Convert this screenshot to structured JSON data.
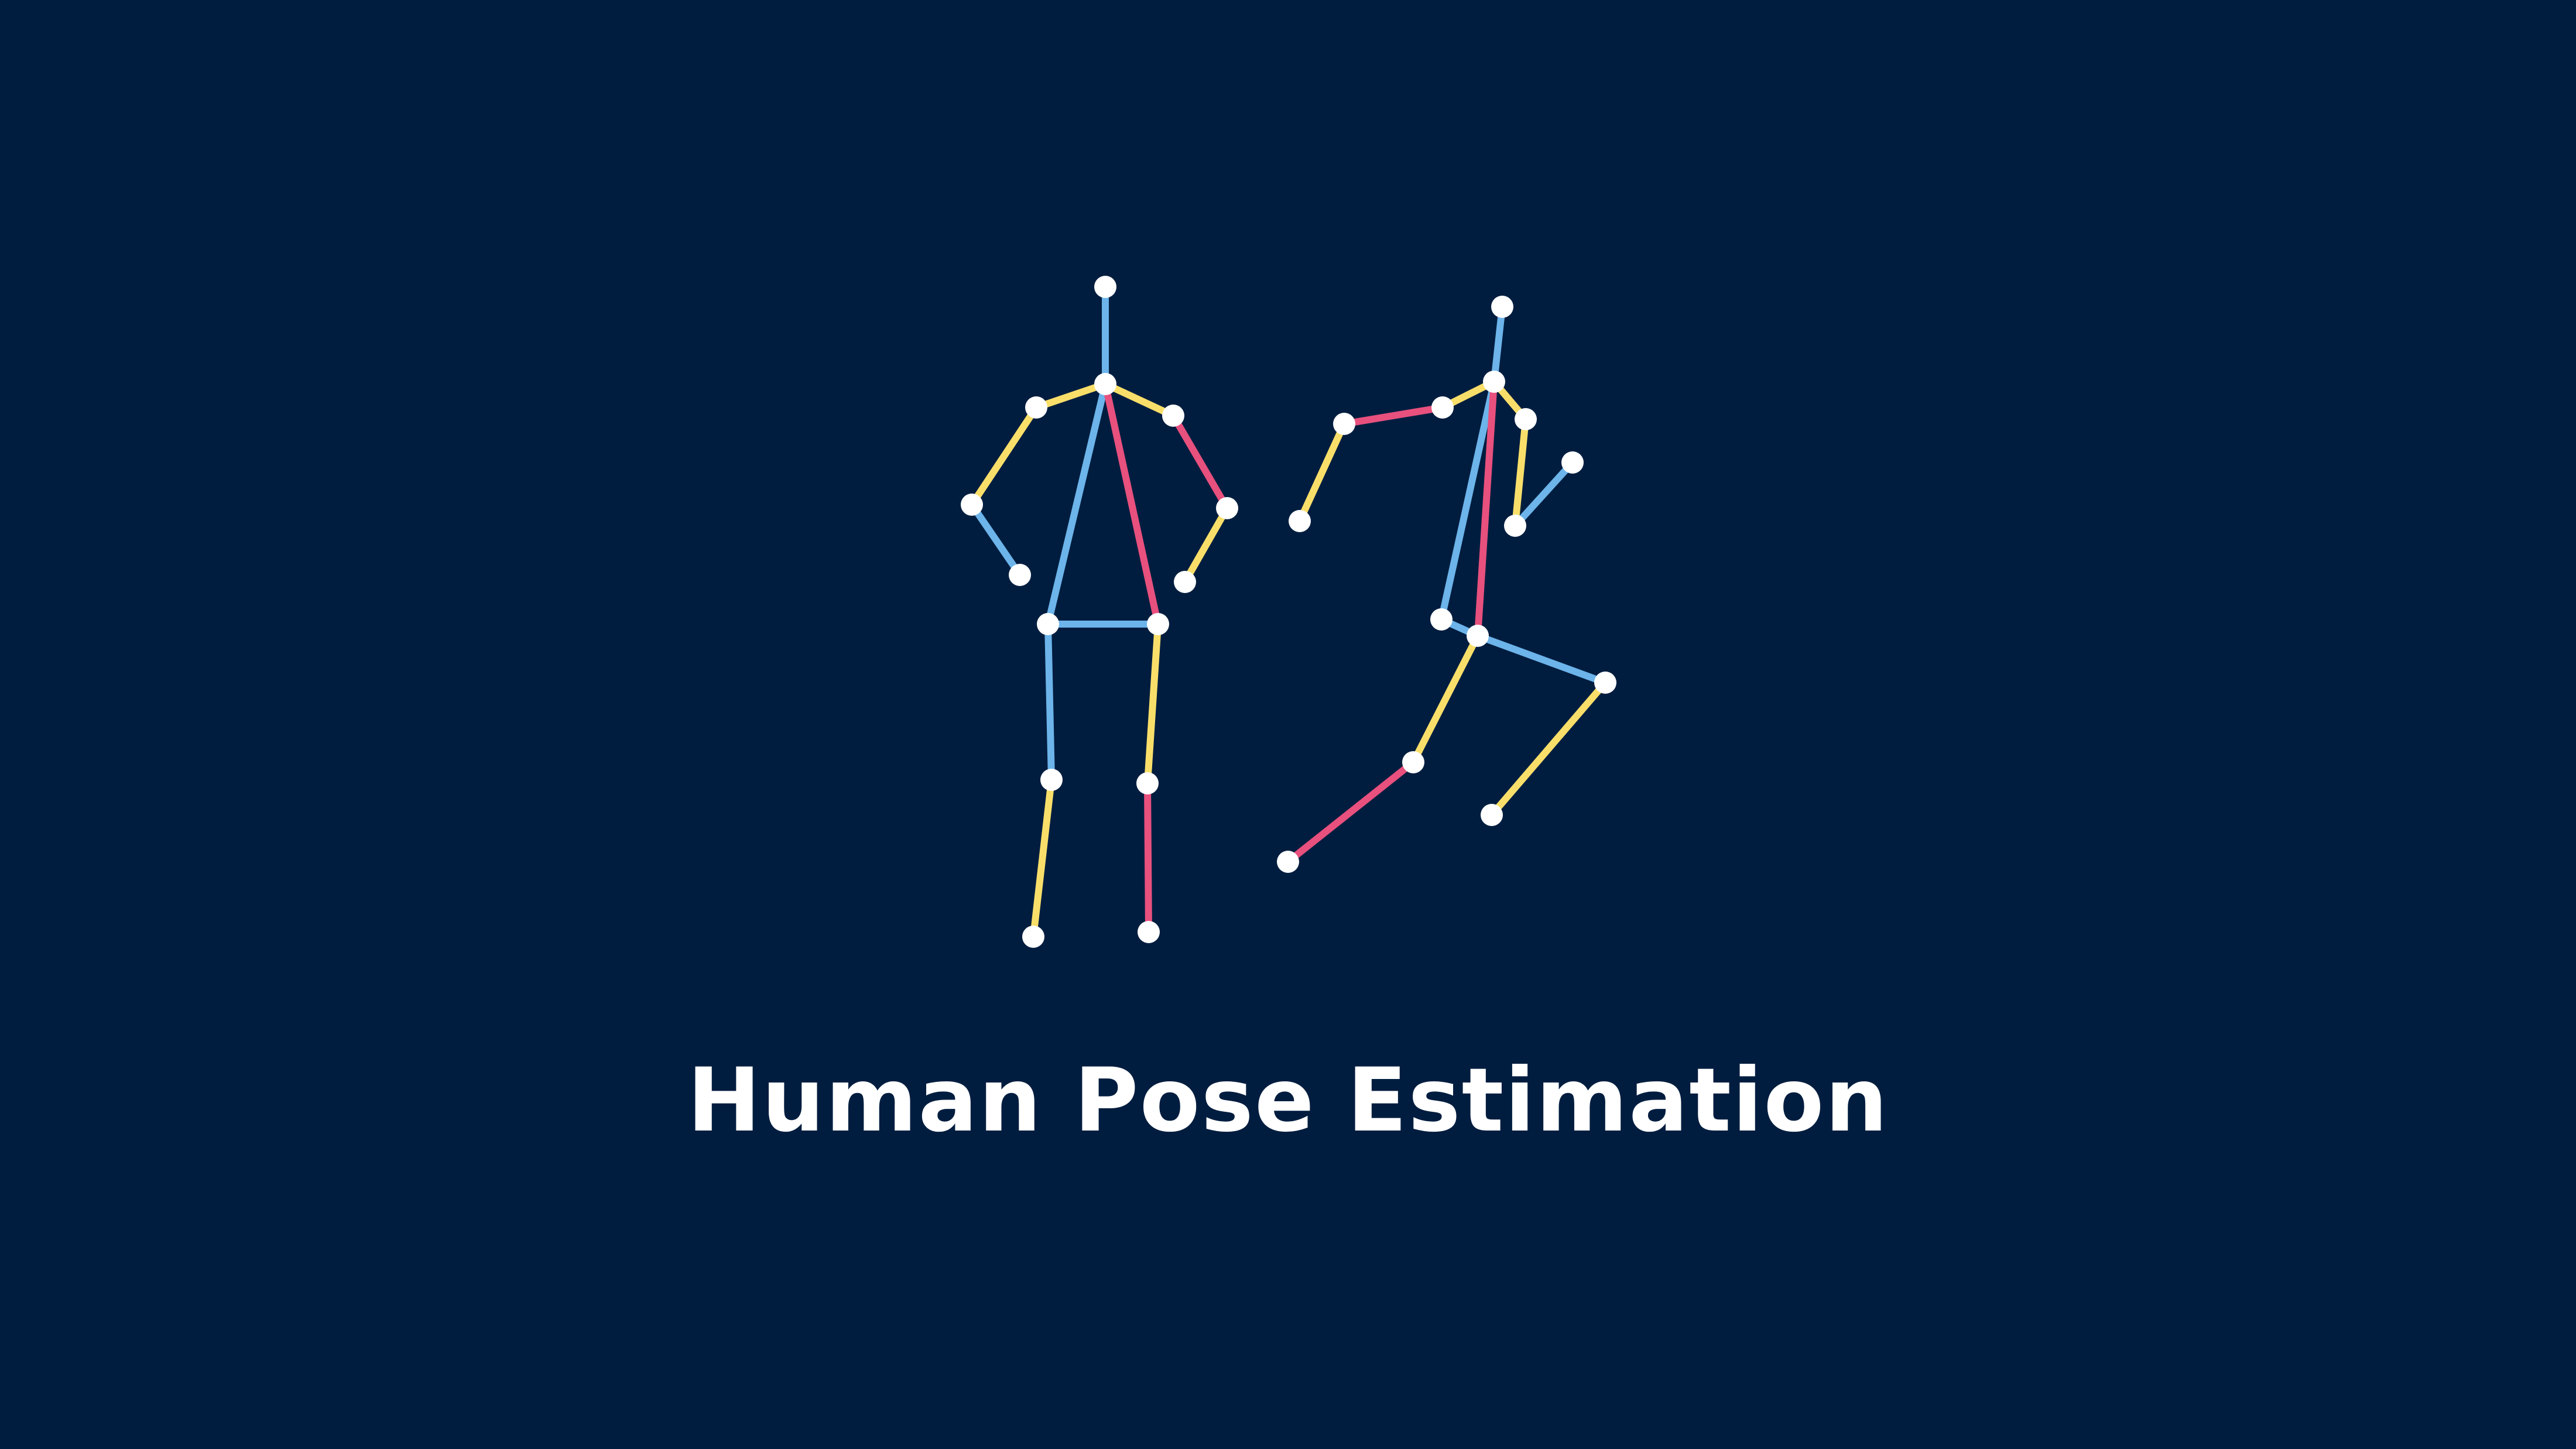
{
  "title": "Human Pose Estimation",
  "colors": {
    "background": "#001d3f",
    "joint": "#ffffff",
    "blue": "#6cb4ea",
    "yellow": "#f9df6a",
    "pink": "#e8507e"
  },
  "figures": [
    {
      "name": "standing-figure",
      "joints": [
        "head",
        "neck",
        "left-shoulder",
        "left-elbow",
        "left-wrist",
        "right-shoulder",
        "right-elbow",
        "right-wrist",
        "left-hip",
        "right-hip",
        "left-knee",
        "left-ankle",
        "right-knee",
        "right-ankle"
      ],
      "bones": [
        {
          "from": "head",
          "to": "neck",
          "color": "blue"
        },
        {
          "from": "neck",
          "to": "left-shoulder",
          "color": "yellow"
        },
        {
          "from": "left-shoulder",
          "to": "left-elbow",
          "color": "yellow"
        },
        {
          "from": "left-elbow",
          "to": "left-wrist",
          "color": "blue"
        },
        {
          "from": "neck",
          "to": "right-shoulder",
          "color": "yellow"
        },
        {
          "from": "right-shoulder",
          "to": "right-elbow",
          "color": "pink"
        },
        {
          "from": "right-elbow",
          "to": "right-wrist",
          "color": "yellow"
        },
        {
          "from": "neck",
          "to": "left-hip",
          "color": "blue"
        },
        {
          "from": "neck",
          "to": "right-hip",
          "color": "pink"
        },
        {
          "from": "left-hip",
          "to": "right-hip",
          "color": "blue"
        },
        {
          "from": "left-hip",
          "to": "left-knee",
          "color": "blue"
        },
        {
          "from": "left-knee",
          "to": "left-ankle",
          "color": "yellow"
        },
        {
          "from": "right-hip",
          "to": "right-knee",
          "color": "yellow"
        },
        {
          "from": "right-knee",
          "to": "right-ankle",
          "color": "pink"
        }
      ]
    },
    {
      "name": "running-figure",
      "joints": [
        "head",
        "neck",
        "left-shoulder",
        "left-elbow",
        "left-wrist",
        "right-shoulder",
        "right-elbow",
        "right-wrist",
        "left-hip",
        "right-hip",
        "left-knee",
        "left-ankle",
        "right-knee",
        "right-ankle"
      ],
      "bones": [
        {
          "from": "head",
          "to": "neck",
          "color": "blue"
        },
        {
          "from": "neck",
          "to": "left-shoulder",
          "color": "yellow"
        },
        {
          "from": "left-shoulder",
          "to": "left-elbow",
          "color": "pink"
        },
        {
          "from": "left-elbow",
          "to": "left-wrist",
          "color": "yellow"
        },
        {
          "from": "neck",
          "to": "right-shoulder",
          "color": "yellow"
        },
        {
          "from": "right-shoulder",
          "to": "right-elbow",
          "color": "yellow"
        },
        {
          "from": "right-elbow",
          "to": "right-wrist",
          "color": "blue"
        },
        {
          "from": "neck",
          "to": "left-hip",
          "color": "blue"
        },
        {
          "from": "neck",
          "to": "right-hip",
          "color": "pink"
        },
        {
          "from": "left-hip",
          "to": "right-hip",
          "color": "blue"
        },
        {
          "from": "right-hip",
          "to": "left-knee",
          "color": "yellow"
        },
        {
          "from": "left-knee",
          "to": "left-ankle",
          "color": "pink"
        },
        {
          "from": "right-hip",
          "to": "right-knee",
          "color": "blue"
        },
        {
          "from": "right-knee",
          "to": "right-ankle",
          "color": "yellow"
        }
      ]
    }
  ]
}
